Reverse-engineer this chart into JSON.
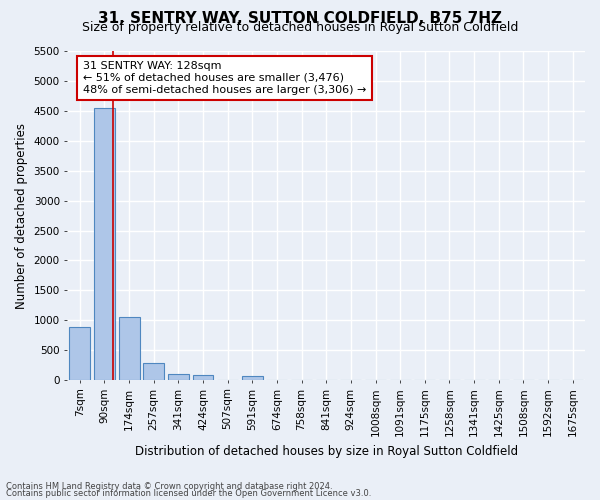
{
  "title": "31, SENTRY WAY, SUTTON COLDFIELD, B75 7HZ",
  "subtitle": "Size of property relative to detached houses in Royal Sutton Coldfield",
  "xlabel": "Distribution of detached houses by size in Royal Sutton Coldfield",
  "ylabel": "Number of detached properties",
  "footnote1": "Contains HM Land Registry data © Crown copyright and database right 2024.",
  "footnote2": "Contains public sector information licensed under the Open Government Licence v3.0.",
  "bin_labels": [
    "7sqm",
    "90sqm",
    "174sqm",
    "257sqm",
    "341sqm",
    "424sqm",
    "507sqm",
    "591sqm",
    "674sqm",
    "758sqm",
    "841sqm",
    "924sqm",
    "1008sqm",
    "1091sqm",
    "1175sqm",
    "1258sqm",
    "1341sqm",
    "1425sqm",
    "1508sqm",
    "1592sqm",
    "1675sqm"
  ],
  "bar_values": [
    880,
    4550,
    1060,
    280,
    90,
    80,
    0,
    60,
    0,
    0,
    0,
    0,
    0,
    0,
    0,
    0,
    0,
    0,
    0,
    0,
    0
  ],
  "bar_color": "#aec6e8",
  "bar_edge_color": "#4f87c0",
  "annotation_text": "31 SENTRY WAY: 128sqm\n← 51% of detached houses are smaller (3,476)\n48% of semi-detached houses are larger (3,306) →",
  "annotation_box_color": "#ffffff",
  "annotation_box_edge": "#cc0000",
  "vline_x": 1.35,
  "vline_color": "#cc0000",
  "ylim_max": 5500,
  "yticks": [
    0,
    500,
    1000,
    1500,
    2000,
    2500,
    3000,
    3500,
    4000,
    4500,
    5000,
    5500
  ],
  "bg_color": "#eaeff7",
  "grid_color": "#ffffff",
  "title_fontsize": 11,
  "subtitle_fontsize": 9,
  "xlabel_fontsize": 8.5,
  "ylabel_fontsize": 8.5,
  "tick_fontsize": 7.5,
  "annotation_fontsize": 8
}
